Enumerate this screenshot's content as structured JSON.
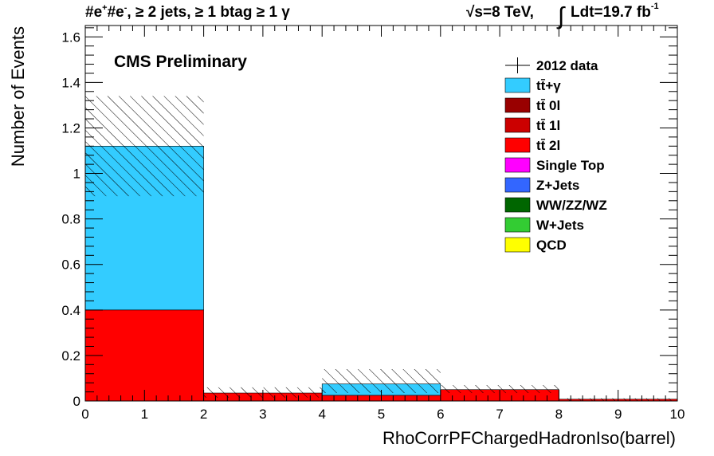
{
  "header": {
    "channel": "#e",
    "sup1": "+",
    "channel2": "#e",
    "sup2": "-",
    "selection": ", ≥ 2 jets, ≥ 1 btag ≥ 1 γ",
    "energy": "√s=8 TeV,",
    "integral": "∫",
    "lumi": "Ldt=19.7 fb",
    "lumi_exp": "-1"
  },
  "cms_label": "CMS Preliminary",
  "chart_data": {
    "type": "bar",
    "stacked": true,
    "xlabel": "RhoCorrPFChargedHadronIso(barrel)",
    "ylabel": "Number of Events",
    "xlim": [
      0,
      10
    ],
    "ylim": [
      0,
      1.65
    ],
    "x_ticks": [
      "0",
      "1",
      "2",
      "3",
      "4",
      "5",
      "6",
      "7",
      "8",
      "9",
      "10"
    ],
    "y_ticks": [
      "0",
      "0.2",
      "0.4",
      "0.6",
      "0.8",
      "1",
      "1.2",
      "1.4",
      "1.6"
    ],
    "bins": [
      [
        0,
        2
      ],
      [
        2,
        4
      ],
      [
        4,
        6
      ],
      [
        6,
        8
      ],
      [
        8,
        10
      ]
    ],
    "series": [
      {
        "name": "tt̄ 2l",
        "color": "#ff0000",
        "values": [
          0.4,
          0.035,
          0.025,
          0.05,
          0.008
        ]
      },
      {
        "name": "tt̄+γ",
        "color": "#33ccff",
        "values": [
          0.72,
          0.0,
          0.05,
          0.0,
          0.0
        ]
      }
    ],
    "uncertainty": {
      "hatch": true,
      "low": [
        0.9,
        0.015,
        0.035,
        0.035,
        0.0
      ],
      "high": [
        1.34,
        0.06,
        0.14,
        0.07,
        0.012
      ]
    },
    "legend": {
      "position": "top-right",
      "entries": [
        {
          "label": "2012 data",
          "marker": "cross",
          "color": "#000000"
        },
        {
          "label": "tt̄+γ",
          "color": "#33ccff"
        },
        {
          "label": "tt̄ 0l",
          "color": "#990000"
        },
        {
          "label": "tt̄ 1l",
          "color": "#cc0000"
        },
        {
          "label": "tt̄ 2l",
          "color": "#ff0000"
        },
        {
          "label": "Single Top",
          "color": "#ff00ff"
        },
        {
          "label": "Z+Jets",
          "color": "#3366ff"
        },
        {
          "label": "WW/ZZ/WZ",
          "color": "#006600"
        },
        {
          "label": "W+Jets",
          "color": "#33cc33"
        },
        {
          "label": "QCD",
          "color": "#ffff00"
        }
      ]
    }
  }
}
